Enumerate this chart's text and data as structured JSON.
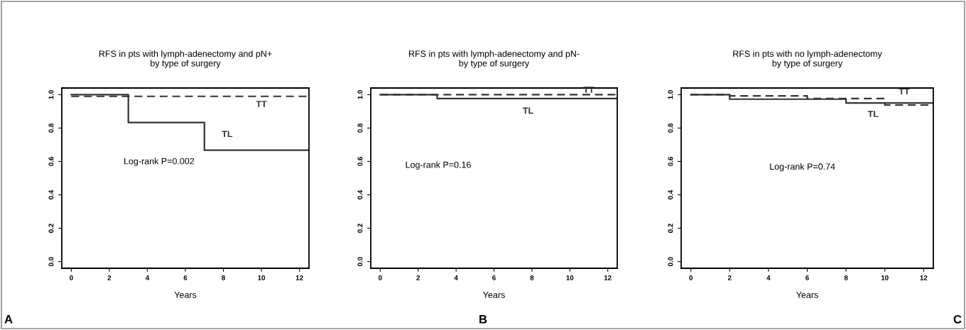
{
  "chart_data": [
    {
      "type": "step",
      "title": "RFS in pts with lymph-adenectomy and pN+\nby type of surgery",
      "xlabel": "Years",
      "legend": false,
      "grid": false,
      "annotations": [
        "Log-rank P=0.002",
        "A"
      ],
      "xlim": [
        -0.5,
        12.5
      ],
      "ylim": [
        -0.04,
        1.04
      ],
      "xticks": [
        0,
        2,
        4,
        6,
        8,
        10,
        12
      ],
      "yticks": [
        {
          "value": 0,
          "label": "0.0"
        },
        {
          "value": 0.2,
          "label": "0.2"
        },
        {
          "value": 0.4,
          "label": "0.4"
        },
        {
          "value": 0.6,
          "label": "0.6"
        },
        {
          "value": 0.8,
          "label": "0.8"
        },
        {
          "value": 1.0,
          "label": "1.0"
        }
      ],
      "series": [
        {
          "name": "TL",
          "color": "#333333",
          "line_style": "solid",
          "x": [
            0,
            3,
            7,
            12.5
          ],
          "values": [
            1.0,
            0.833,
            0.667,
            0.667
          ]
        },
        {
          "name": "TT",
          "color": "#333333",
          "line_style": "dashed",
          "x": [
            0,
            12.5
          ],
          "values": [
            0.99,
            0.99
          ]
        }
      ]
    },
    {
      "type": "step",
      "title": "RFS in pts with lymph-adenectomy and pN-\nby type of surgery",
      "xlabel": "Years",
      "legend": false,
      "grid": false,
      "annotations": [
        "Log-rank P=0.16",
        "B"
      ],
      "xlim": [
        -0.5,
        12.5
      ],
      "ylim": [
        -0.04,
        1.04
      ],
      "xticks": [
        0,
        2,
        4,
        6,
        8,
        10,
        12
      ],
      "yticks": [
        {
          "value": 0,
          "label": "0.0"
        },
        {
          "value": 0.2,
          "label": "0.2"
        },
        {
          "value": 0.4,
          "label": "0.4"
        },
        {
          "value": 0.6,
          "label": "0.6"
        },
        {
          "value": 0.8,
          "label": "0.8"
        },
        {
          "value": 1.0,
          "label": "1.0"
        }
      ],
      "series": [
        {
          "name": "TL",
          "color": "#333333",
          "line_style": "solid",
          "x": [
            0,
            3,
            12.5
          ],
          "values": [
            1.0,
            0.977,
            0.977
          ]
        },
        {
          "name": "TT",
          "color": "#333333",
          "line_style": "dashed",
          "x": [
            0,
            12.5
          ],
          "values": [
            1.0,
            1.0
          ]
        }
      ]
    },
    {
      "type": "step",
      "title": "RFS in pts with no lymph-adenectomy\nby type of surgery",
      "xlabel": "Years",
      "legend": false,
      "grid": false,
      "annotations": [
        "Log-rank P=0.74",
        "C"
      ],
      "xlim": [
        -0.5,
        12.5
      ],
      "ylim": [
        -0.04,
        1.04
      ],
      "xticks": [
        0,
        2,
        4,
        6,
        8,
        10,
        12
      ],
      "yticks": [
        {
          "value": 0,
          "label": "0.0"
        },
        {
          "value": 0.2,
          "label": "0.2"
        },
        {
          "value": 0.4,
          "label": "0.4"
        },
        {
          "value": 0.6,
          "label": "0.6"
        },
        {
          "value": 0.8,
          "label": "0.8"
        },
        {
          "value": 1.0,
          "label": "1.0"
        }
      ],
      "series": [
        {
          "name": "TL",
          "color": "#333333",
          "line_style": "solid",
          "x": [
            0,
            2,
            8,
            12.5
          ],
          "values": [
            1.0,
            0.973,
            0.95,
            0.95
          ]
        },
        {
          "name": "TT",
          "color": "#333333",
          "line_style": "dashed",
          "x": [
            0,
            2,
            6,
            10,
            12.5
          ],
          "values": [
            1.0,
            0.993,
            0.977,
            0.938,
            0.938
          ]
        }
      ]
    }
  ]
}
